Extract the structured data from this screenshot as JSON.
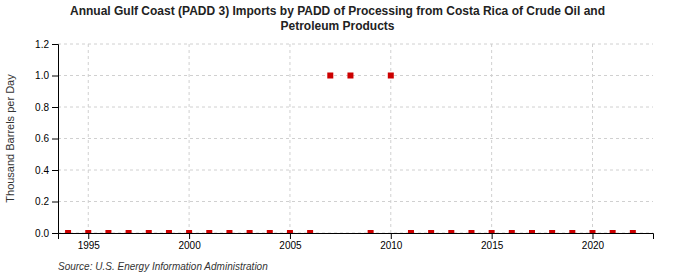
{
  "chart_data": {
    "type": "scatter",
    "title": "Annual Gulf Coast (PADD 3) Imports by PADD of Processing from Costa Rica of Crude Oil and\nPetroleum Products",
    "ylabel": "Thousand Barrels per Day",
    "source": "Source: U.S. Energy Information Administration",
    "x": [
      1994,
      1995,
      1996,
      1997,
      1998,
      1999,
      2000,
      2001,
      2002,
      2003,
      2004,
      2005,
      2006,
      2007,
      2008,
      2009,
      2010,
      2011,
      2012,
      2013,
      2014,
      2015,
      2016,
      2017,
      2018,
      2019,
      2020,
      2021,
      2022
    ],
    "values": [
      0,
      0,
      0,
      0,
      0,
      0,
      0,
      0,
      0,
      0,
      0,
      0,
      0,
      1.0,
      1.0,
      0,
      1.0,
      0,
      0,
      0,
      0,
      0,
      0,
      0,
      0,
      0,
      0,
      0,
      0
    ],
    "color": "#cc0000",
    "marker": "square",
    "grid": true,
    "xlim": [
      1993.5,
      2023
    ],
    "ylim": [
      0,
      1.2
    ],
    "xticks": [
      1995,
      2000,
      2005,
      2010,
      2015,
      2020
    ],
    "yticks": [
      {
        "value": 0.0,
        "label": "0.0"
      },
      0.2,
      0.4,
      0.6,
      0.8,
      {
        "value": 1.0,
        "label": "1.0"
      },
      1.2
    ]
  }
}
